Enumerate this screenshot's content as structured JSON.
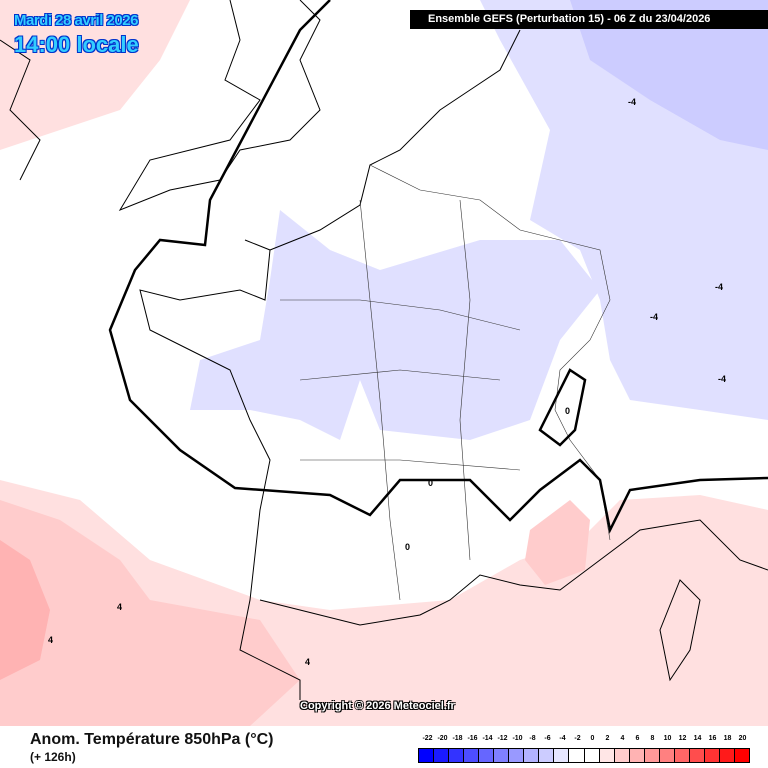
{
  "header": {
    "date": "Mardi 28 avril 2026",
    "time": "14:00 locale",
    "run": "Ensemble GEFS  (Perturbation 15)  -  06 Z du 23/04/2026"
  },
  "map": {
    "copyright": "Copyright © 2026 Meteociel.fr",
    "contour_labels": [
      "-4",
      "-4",
      "-4",
      "-4",
      "0",
      "0",
      "0",
      "4",
      "4",
      "4"
    ],
    "fill_colors": {
      "cold": "#e0e0ff",
      "colder": "#ccccff",
      "warm": "#ffe0e0",
      "warmer": "#ffcccc",
      "warmest": "#ffb3b3"
    }
  },
  "footer": {
    "title": "Anom. Température 850hPa (°C)",
    "lead": "(+ 126h)"
  },
  "legend": {
    "labels": [
      "-22",
      "-20",
      "-18",
      "-16",
      "-14",
      "-12",
      "-10",
      "-8",
      "-6",
      "-4",
      "-2",
      "0",
      "2",
      "4",
      "6",
      "8",
      "10",
      "12",
      "14",
      "16",
      "18",
      "20"
    ],
    "colors": [
      "#0000ff",
      "#1a1aff",
      "#3333ff",
      "#4d4dff",
      "#6666ff",
      "#8080ff",
      "#9999ff",
      "#b3b3ff",
      "#ccccff",
      "#e6e6ff",
      "#ffffff",
      "#ffffff",
      "#ffe6e6",
      "#ffcccc",
      "#ffb3b3",
      "#ff9999",
      "#ff8080",
      "#ff6666",
      "#ff4d4d",
      "#ff3333",
      "#ff1a1a",
      "#ff0000"
    ]
  }
}
